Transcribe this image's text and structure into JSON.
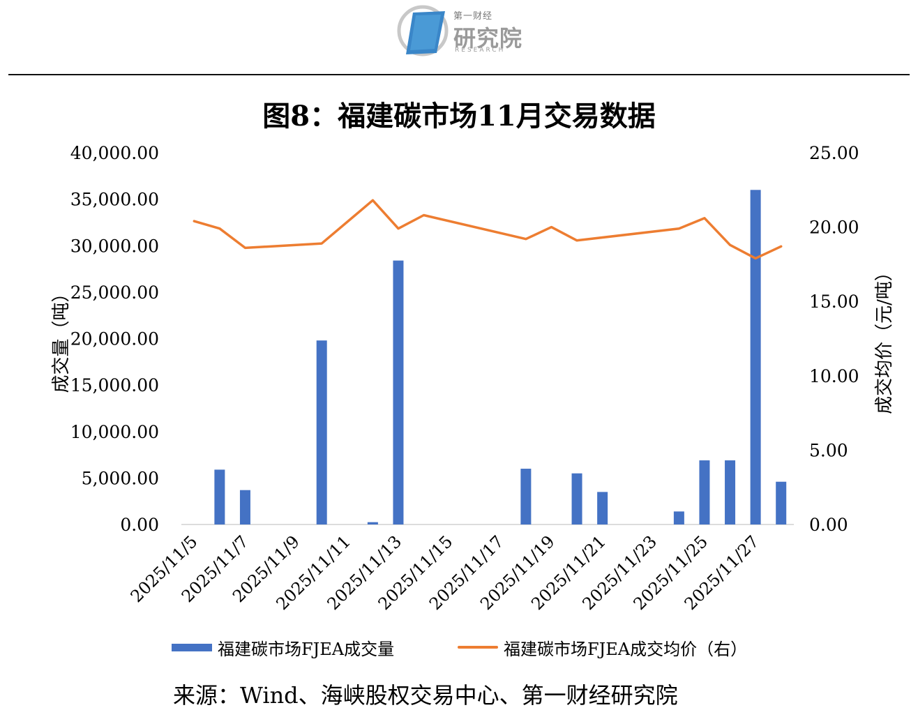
{
  "header": {
    "logo_cn": "第一财经",
    "logo_main": "研究院",
    "logo_en": "RESEARCH"
  },
  "title": "图8：福建碳市场11月交易数据",
  "colors": {
    "bar": "#4472c4",
    "line": "#ed7d31",
    "axis": "#d0d0d0"
  },
  "chart_data": {
    "type": "bar",
    "title": "图8：福建碳市场11月交易数据",
    "x": [
      "2025/11/5",
      "2025/11/6",
      "2025/11/7",
      "2025/11/8",
      "2025/11/9",
      "2025/11/10",
      "2025/11/11",
      "2025/11/12",
      "2025/11/13",
      "2025/11/14",
      "2025/11/15",
      "2025/11/16",
      "2025/11/17",
      "2025/11/18",
      "2025/11/19",
      "2025/11/20",
      "2025/11/21",
      "2025/11/22",
      "2025/11/23",
      "2025/11/24",
      "2025/11/25",
      "2025/11/26",
      "2025/11/27",
      "2025/11/28"
    ],
    "x_tick_labels": [
      "2025/11/5",
      "2025/11/7",
      "2025/11/9",
      "2025/11/11",
      "2025/11/13",
      "2025/11/15",
      "2025/11/17",
      "2025/11/19",
      "2025/11/21",
      "2025/11/23",
      "2025/11/25",
      "2025/11/27"
    ],
    "ylabel": "成交量（吨）",
    "y2label": "成交均价（元/吨）",
    "ylim": [
      0,
      40000
    ],
    "y2lim": [
      0,
      25
    ],
    "y_ticks": [
      "0.00",
      "5,000.00",
      "10,000.00",
      "15,000.00",
      "20,000.00",
      "25,000.00",
      "30,000.00",
      "35,000.00",
      "40,000.00"
    ],
    "y2_ticks": [
      "0.00",
      "5.00",
      "10.00",
      "15.00",
      "20.00",
      "25.00"
    ],
    "series": [
      {
        "name": "福建碳市场FJEA成交量",
        "type": "bar",
        "axis": "left",
        "values": [
          0,
          5900,
          3700,
          0,
          0,
          19800,
          0,
          250,
          28400,
          0,
          0,
          0,
          0,
          6000,
          0,
          5500,
          3500,
          0,
          0,
          1400,
          6900,
          6900,
          36000,
          4600
        ]
      },
      {
        "name": "福建碳市场FJEA成交均价（右）",
        "type": "line",
        "axis": "right",
        "values": [
          20.4,
          19.9,
          18.6,
          null,
          null,
          18.9,
          null,
          21.8,
          19.9,
          20.8,
          null,
          null,
          null,
          19.2,
          20.0,
          19.1,
          null,
          null,
          null,
          19.9,
          20.6,
          18.8,
          17.9,
          18.7
        ]
      }
    ],
    "legend": "bottom",
    "grid": false
  },
  "source": "来源：Wind、海峡股权交易中心、第一财经研究院"
}
